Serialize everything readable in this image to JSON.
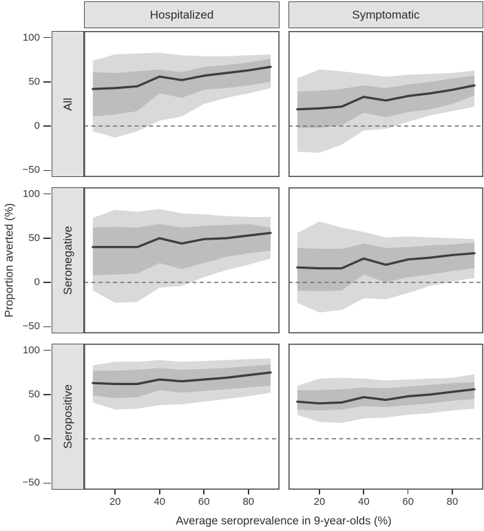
{
  "figure": {
    "x_title": "Average seroprevalence in 9-year-olds (%)",
    "y_title": "Proportion averted (%)",
    "col_labels": [
      "Hospitalized",
      "Symptomatic"
    ],
    "row_labels": [
      "All",
      "Seronegative",
      "Seropositive"
    ]
  },
  "colors": {
    "line": "#3d3d3d",
    "inner_band": "#bdbdbd",
    "outer_band": "#d9d9d9",
    "panel_border": "#4d4d4d",
    "strip_bg": "#e2e2e2",
    "zero_line": "#737373",
    "tick": "#3a3a3a",
    "background": "#ffffff"
  },
  "chart_data": {
    "type": "line",
    "title": "",
    "xlabel": "Average seroprevalence in 9-year-olds (%)",
    "ylabel": "Proportion averted (%)",
    "facet_columns": [
      "Hospitalized",
      "Symptomatic"
    ],
    "facet_rows": [
      "All",
      "Seronegative",
      "Seropositive"
    ],
    "x": [
      10,
      20,
      30,
      40,
      50,
      60,
      70,
      80,
      90
    ],
    "x_tick_values": [
      20,
      40,
      60,
      80
    ],
    "x_tick_labels": [
      "20",
      "40",
      "60",
      "80"
    ],
    "y_tick_values": [
      100,
      50,
      0,
      -50
    ],
    "y_tick_labels": [
      "100",
      "50",
      "0",
      "−50"
    ],
    "x_domain": [
      6,
      94
    ],
    "y_domain": [
      -57.5,
      107.5
    ],
    "reference_line_y": 0,
    "grid": false,
    "legend": false,
    "panels": [
      {
        "row": "All",
        "col": "Hospitalized",
        "median": [
          42,
          43,
          45,
          56,
          52,
          57,
          60,
          63,
          67
        ],
        "inner_high": [
          61,
          60,
          62,
          64,
          61,
          67,
          69,
          72,
          76
        ],
        "inner_low": [
          11,
          13,
          17,
          37,
          32,
          41,
          43,
          46,
          50
        ],
        "outer_high": [
          74,
          81,
          82,
          83,
          80,
          79,
          79,
          80,
          81
        ],
        "outer_low": [
          -6,
          -13,
          -6,
          6,
          11,
          25,
          32,
          37,
          43
        ]
      },
      {
        "row": "All",
        "col": "Symptomatic",
        "median": [
          19,
          20,
          22,
          33,
          29,
          34,
          37,
          41,
          46
        ],
        "inner_high": [
          39,
          40,
          42,
          46,
          43,
          47,
          50,
          54,
          57
        ],
        "inner_low": [
          -2,
          -2,
          1,
          15,
          10,
          16,
          19,
          25,
          35
        ],
        "outer_high": [
          54,
          64,
          62,
          59,
          56,
          58,
          59,
          60,
          63
        ],
        "outer_low": [
          -29,
          -30,
          -21,
          -5,
          -3,
          5,
          12,
          17,
          22
        ]
      },
      {
        "row": "Seronegative",
        "col": "Hospitalized",
        "median": [
          40,
          40,
          40,
          50,
          44,
          49,
          50,
          53,
          56
        ],
        "inner_high": [
          62,
          63,
          62,
          66,
          62,
          64,
          65,
          66,
          62
        ],
        "inner_low": [
          8,
          9,
          10,
          22,
          15,
          22,
          29,
          33,
          36
        ],
        "outer_high": [
          73,
          82,
          80,
          83,
          78,
          77,
          75,
          74,
          74
        ],
        "outer_low": [
          -9,
          -23,
          -22,
          -6,
          -4,
          6,
          14,
          20,
          27
        ]
      },
      {
        "row": "Seronegative",
        "col": "Symptomatic",
        "median": [
          17,
          16,
          16,
          27,
          20,
          26,
          28,
          31,
          33
        ],
        "inner_high": [
          39,
          38,
          38,
          44,
          39,
          40,
          42,
          43,
          45
        ],
        "inner_low": [
          -9,
          -10,
          -9,
          9,
          0,
          6,
          9,
          13,
          16
        ],
        "outer_high": [
          56,
          69,
          62,
          57,
          51,
          52,
          51,
          50,
          49
        ],
        "outer_low": [
          -23,
          -34,
          -31,
          -18,
          -19,
          -12,
          -4,
          1,
          5
        ]
      },
      {
        "row": "Seropositive",
        "col": "Hospitalized",
        "median": [
          63,
          62,
          62,
          67,
          65,
          67,
          69,
          72,
          75
        ],
        "inner_high": [
          77,
          77,
          78,
          80,
          78,
          79,
          80,
          82,
          84
        ],
        "inner_low": [
          49,
          46,
          47,
          55,
          52,
          54,
          56,
          58,
          60
        ],
        "outer_high": [
          83,
          87,
          87,
          89,
          87,
          88,
          89,
          90,
          91
        ],
        "outer_low": [
          41,
          33,
          34,
          38,
          39,
          42,
          45,
          48,
          52
        ]
      },
      {
        "row": "Seropositive",
        "col": "Symptomatic",
        "median": [
          42,
          40,
          41,
          47,
          44,
          48,
          50,
          53,
          56
        ],
        "inner_high": [
          55,
          55,
          56,
          58,
          57,
          59,
          61,
          63,
          64
        ],
        "inner_low": [
          33,
          32,
          33,
          37,
          36,
          38,
          40,
          43,
          45
        ],
        "outer_high": [
          60,
          68,
          69,
          68,
          66,
          67,
          68,
          69,
          73
        ],
        "outer_low": [
          27,
          19,
          18,
          23,
          24,
          27,
          29,
          32,
          34
        ]
      }
    ]
  }
}
